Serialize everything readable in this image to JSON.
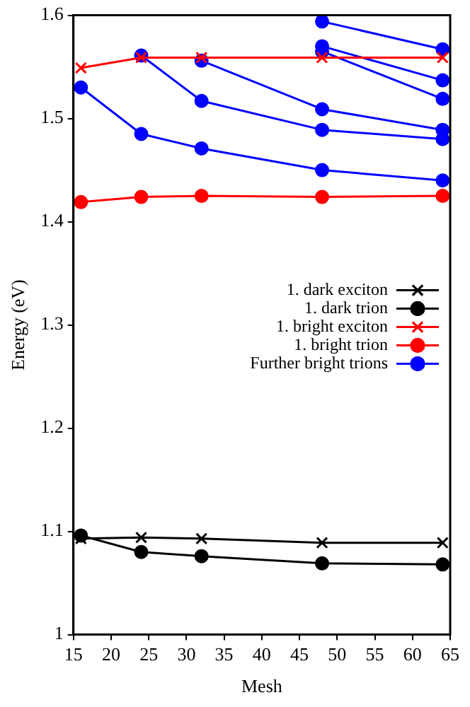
{
  "chart_data": {
    "type": "line",
    "xlabel": "Mesh",
    "ylabel": "Energy (eV)",
    "x": [
      16,
      24,
      32,
      48,
      64
    ],
    "xlim": [
      15,
      65
    ],
    "xticks": [
      15,
      20,
      25,
      30,
      35,
      40,
      45,
      50,
      55,
      60,
      65
    ],
    "ylim": [
      1,
      1.6
    ],
    "yticks": [
      1,
      1.1,
      1.2,
      1.3,
      1.4,
      1.5,
      1.6
    ],
    "grid": false,
    "legend": "right",
    "line_style": "solid",
    "series": [
      {
        "name": "1. dark exciton",
        "color": "#000000",
        "marker": "cross",
        "values": [
          1.093,
          1.094,
          1.093,
          1.089,
          1.089
        ]
      },
      {
        "name": "1. dark trion",
        "color": "#000000",
        "marker": "circle",
        "values": [
          1.096,
          1.08,
          1.076,
          1.069,
          1.068
        ]
      },
      {
        "name": "1. bright exciton",
        "color": "#ff0000",
        "marker": "cross",
        "values": [
          1.549,
          1.559,
          1.559,
          1.559,
          1.559
        ]
      },
      {
        "name": "1. bright trion",
        "color": "#ff0000",
        "marker": "circle",
        "values": [
          1.419,
          1.424,
          1.425,
          1.424,
          1.425
        ]
      },
      {
        "name": "Further bright trions",
        "color": "#0000ff",
        "marker": "circle",
        "values": [
          1.53,
          1.485,
          1.471,
          1.45,
          1.44
        ]
      },
      {
        "color": "#0000ff",
        "marker": "circle",
        "values": [
          null,
          1.561,
          1.517,
          1.489,
          1.48
        ]
      },
      {
        "color": "#0000ff",
        "marker": "circle",
        "values": [
          null,
          null,
          1.556,
          1.509,
          1.489
        ]
      },
      {
        "color": "#0000ff",
        "marker": "circle",
        "values": [
          null,
          null,
          null,
          1.57,
          1.537
        ]
      },
      {
        "color": "#0000ff",
        "marker": "circle",
        "values": [
          null,
          null,
          null,
          1.565,
          1.519
        ]
      },
      {
        "color": "#0000ff",
        "marker": "circle",
        "values": [
          null,
          null,
          null,
          1.594,
          1.567
        ]
      }
    ]
  }
}
